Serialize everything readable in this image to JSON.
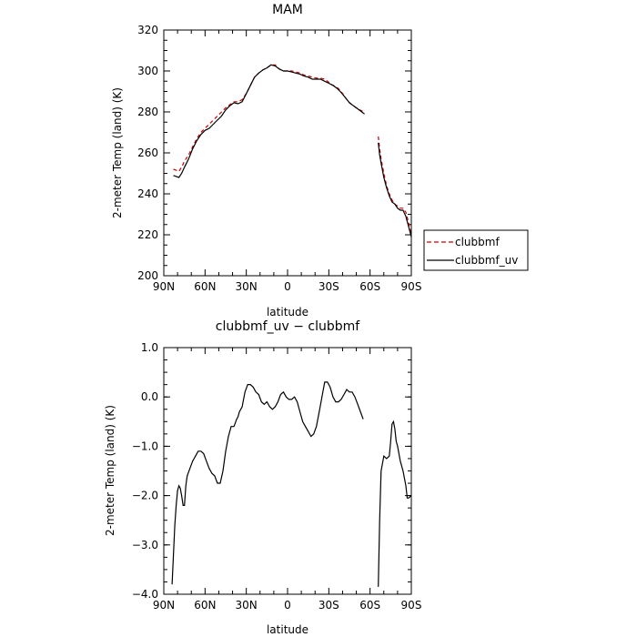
{
  "chart_data": [
    {
      "type": "line",
      "title": "MAM",
      "xlabel": "latitude",
      "ylabel": "2-meter Temp (land) (K)",
      "xlim": [
        90,
        -90
      ],
      "ylim": [
        200,
        320
      ],
      "x_tick_values": [
        90,
        60,
        30,
        0,
        -30,
        -60,
        -90
      ],
      "x_tick_labels": [
        "90N",
        "60N",
        "30N",
        "0",
        "30S",
        "60S",
        "90S"
      ],
      "y_tick_values": [
        200,
        220,
        240,
        260,
        280,
        300,
        320
      ],
      "y_tick_labels": [
        "200",
        "220",
        "240",
        "260",
        "280",
        "300",
        "320"
      ],
      "legend": {
        "placement": "right",
        "entries": [
          {
            "label": "clubbmf",
            "color": "#cc0000",
            "dash": "dashed"
          },
          {
            "label": "clubbmf_uv",
            "color": "#000000",
            "dash": "solid"
          }
        ]
      },
      "series": [
        {
          "name": "clubbmf",
          "color": "#cc0000",
          "dash": "dashed",
          "segments": [
            [
              [
                83,
                252
              ],
              [
                81,
                251.5
              ],
              [
                79,
                251
              ],
              [
                77,
                253
              ],
              [
                75,
                256
              ],
              [
                72,
                259
              ],
              [
                69,
                263
              ],
              [
                66,
                267
              ],
              [
                63,
                270
              ],
              [
                60,
                272
              ],
              [
                57,
                274
              ],
              [
                54,
                276
              ],
              [
                51,
                278
              ],
              [
                48,
                280
              ],
              [
                45,
                282
              ],
              [
                42,
                283.5
              ],
              [
                39,
                285
              ],
              [
                36,
                285
              ],
              [
                33,
                286
              ],
              [
                30,
                289
              ],
              [
                27,
                293
              ],
              [
                24,
                297
              ],
              [
                21,
                299
              ],
              [
                18,
                300.5
              ],
              [
                15,
                301.5
              ],
              [
                12,
                303
              ],
              [
                9,
                303
              ],
              [
                6,
                301
              ],
              [
                3,
                300
              ],
              [
                0,
                300
              ],
              [
                -3,
                300
              ],
              [
                -6,
                299.5
              ],
              [
                -9,
                299
              ],
              [
                -12,
                298
              ],
              [
                -15,
                297.5
              ],
              [
                -18,
                297
              ],
              [
                -21,
                296.5
              ],
              [
                -24,
                296.5
              ],
              [
                -27,
                296
              ],
              [
                -30,
                294.5
              ],
              [
                -33,
                293
              ],
              [
                -36,
                292
              ],
              [
                -39,
                290
              ],
              [
                -42,
                287
              ],
              [
                -45,
                284.5
              ],
              [
                -48,
                283
              ],
              [
                -51,
                281.5
              ],
              [
                -54,
                280.5
              ],
              [
                -56,
                280
              ]
            ],
            [
              [
                -66,
                268
              ],
              [
                -67,
                262
              ],
              [
                -68,
                257
              ],
              [
                -70,
                250
              ],
              [
                -72,
                244
              ],
              [
                -74,
                240
              ],
              [
                -76,
                237
              ],
              [
                -78,
                235
              ],
              [
                -80,
                234
              ],
              [
                -82,
                233
              ],
              [
                -84,
                233
              ],
              [
                -86,
                231
              ],
              [
                -88,
                226
              ],
              [
                -90,
                220
              ]
            ]
          ]
        },
        {
          "name": "clubbmf_uv",
          "color": "#000000",
          "dash": "solid",
          "segments": [
            [
              [
                83,
                249
              ],
              [
                81,
                248.5
              ],
              [
                79,
                248
              ],
              [
                77,
                250
              ],
              [
                75,
                253
              ],
              [
                72,
                257
              ],
              [
                69,
                262
              ],
              [
                66,
                266
              ],
              [
                63,
                269
              ],
              [
                60,
                271
              ],
              [
                57,
                272
              ],
              [
                54,
                274
              ],
              [
                51,
                276
              ],
              [
                48,
                278
              ],
              [
                45,
                281
              ],
              [
                42,
                283
              ],
              [
                39,
                284.5
              ],
              [
                36,
                284
              ],
              [
                33,
                285
              ],
              [
                30,
                289
              ],
              [
                27,
                293
              ],
              [
                24,
                297
              ],
              [
                21,
                299
              ],
              [
                18,
                300.5
              ],
              [
                15,
                301.5
              ],
              [
                12,
                303
              ],
              [
                9,
                302.5
              ],
              [
                6,
                301
              ],
              [
                3,
                300
              ],
              [
                0,
                300
              ],
              [
                -3,
                299.5
              ],
              [
                -6,
                299
              ],
              [
                -9,
                298.5
              ],
              [
                -12,
                297.5
              ],
              [
                -15,
                297
              ],
              [
                -18,
                296
              ],
              [
                -21,
                296
              ],
              [
                -24,
                296
              ],
              [
                -27,
                295
              ],
              [
                -30,
                294
              ],
              [
                -33,
                293
              ],
              [
                -36,
                291.5
              ],
              [
                -39,
                289.5
              ],
              [
                -42,
                287
              ],
              [
                -45,
                284.5
              ],
              [
                -48,
                283
              ],
              [
                -51,
                281.5
              ],
              [
                -54,
                280
              ],
              [
                -56,
                279
              ]
            ],
            [
              [
                -66,
                265
              ],
              [
                -67,
                259
              ],
              [
                -68,
                255
              ],
              [
                -70,
                248
              ],
              [
                -72,
                243
              ],
              [
                -74,
                239
              ],
              [
                -76,
                236
              ],
              [
                -78,
                235
              ],
              [
                -80,
                233
              ],
              [
                -82,
                232
              ],
              [
                -84,
                232
              ],
              [
                -86,
                229
              ],
              [
                -88,
                224
              ],
              [
                -90,
                219
              ]
            ]
          ]
        }
      ]
    },
    {
      "type": "line",
      "title": "clubbmf_uv − clubbmf",
      "xlabel": "latitude",
      "ylabel": "2-meter Temp (land) (K)",
      "xlim": [
        90,
        -90
      ],
      "ylim": [
        -4,
        1
      ],
      "x_tick_values": [
        90,
        60,
        30,
        0,
        -30,
        -60,
        -90
      ],
      "x_tick_labels": [
        "90N",
        "60N",
        "30N",
        "0",
        "30S",
        "60S",
        "90S"
      ],
      "y_tick_values": [
        -4,
        -3,
        -2,
        -1,
        0,
        1
      ],
      "y_tick_labels": [
        "−4.0",
        "−3.0",
        "−2.0",
        "−1.0",
        "0.0",
        "1.0"
      ],
      "series": [
        {
          "name": "",
          "color": "#000000",
          "dash": "solid",
          "segments": [
            [
              [
                84,
                -3.8
              ],
              [
                83,
                -3.2
              ],
              [
                82,
                -2.6
              ],
              [
                81,
                -2.2
              ],
              [
                80,
                -1.9
              ],
              [
                79,
                -1.8
              ],
              [
                78,
                -1.85
              ],
              [
                77,
                -2.0
              ],
              [
                76,
                -2.2
              ],
              [
                75,
                -2.2
              ],
              [
                74,
                -1.8
              ],
              [
                73,
                -1.6
              ],
              [
                71,
                -1.45
              ],
              [
                69,
                -1.3
              ],
              [
                67,
                -1.2
              ],
              [
                65,
                -1.1
              ],
              [
                63,
                -1.1
              ],
              [
                61,
                -1.15
              ],
              [
                59,
                -1.3
              ],
              [
                57,
                -1.45
              ],
              [
                55,
                -1.55
              ],
              [
                53,
                -1.6
              ],
              [
                51,
                -1.75
              ],
              [
                49,
                -1.75
              ],
              [
                47,
                -1.5
              ],
              [
                45,
                -1.1
              ],
              [
                43,
                -0.8
              ],
              [
                41,
                -0.6
              ],
              [
                39,
                -0.6
              ],
              [
                37,
                -0.45
              ],
              [
                36,
                -0.4
              ],
              [
                35,
                -0.3
              ],
              [
                33,
                -0.2
              ],
              [
                31,
                0.1
              ],
              [
                29,
                0.25
              ],
              [
                27,
                0.25
              ],
              [
                25,
                0.2
              ],
              [
                23,
                0.1
              ],
              [
                21,
                0.05
              ],
              [
                19,
                -0.1
              ],
              [
                17,
                -0.15
              ],
              [
                15,
                -0.1
              ],
              [
                13,
                -0.2
              ],
              [
                11,
                -0.25
              ],
              [
                9,
                -0.2
              ],
              [
                7,
                -0.1
              ],
              [
                5,
                0.05
              ],
              [
                3,
                0.1
              ],
              [
                1,
                0.0
              ],
              [
                -1,
                -0.05
              ],
              [
                -3,
                -0.05
              ],
              [
                -5,
                0.0
              ],
              [
                -7,
                -0.1
              ],
              [
                -9,
                -0.3
              ],
              [
                -11,
                -0.5
              ],
              [
                -13,
                -0.6
              ],
              [
                -15,
                -0.7
              ],
              [
                -17,
                -0.8
              ],
              [
                -19,
                -0.75
              ],
              [
                -21,
                -0.6
              ],
              [
                -23,
                -0.3
              ],
              [
                -25,
                0.0
              ],
              [
                -27,
                0.3
              ],
              [
                -29,
                0.3
              ],
              [
                -31,
                0.2
              ],
              [
                -33,
                0.0
              ],
              [
                -35,
                -0.1
              ],
              [
                -37,
                -0.1
              ],
              [
                -39,
                -0.05
              ],
              [
                -41,
                0.05
              ],
              [
                -43,
                0.15
              ],
              [
                -45,
                0.1
              ],
              [
                -47,
                0.1
              ],
              [
                -49,
                0.0
              ],
              [
                -51,
                -0.15
              ],
              [
                -53,
                -0.3
              ],
              [
                -55,
                -0.45
              ]
            ],
            [
              [
                -66,
                -3.85
              ],
              [
                -67,
                -2.5
              ],
              [
                -68,
                -1.5
              ],
              [
                -69,
                -1.35
              ],
              [
                -70,
                -1.2
              ],
              [
                -72,
                -1.25
              ],
              [
                -74,
                -1.2
              ],
              [
                -75,
                -0.9
              ],
              [
                -76,
                -0.55
              ],
              [
                -77,
                -0.5
              ],
              [
                -78,
                -0.65
              ],
              [
                -79,
                -0.9
              ],
              [
                -80,
                -1.0
              ],
              [
                -82,
                -1.3
              ],
              [
                -84,
                -1.5
              ],
              [
                -86,
                -1.8
              ],
              [
                -87,
                -2.05
              ],
              [
                -88,
                -2.05
              ],
              [
                -90,
                -2.0
              ]
            ]
          ]
        }
      ]
    }
  ]
}
